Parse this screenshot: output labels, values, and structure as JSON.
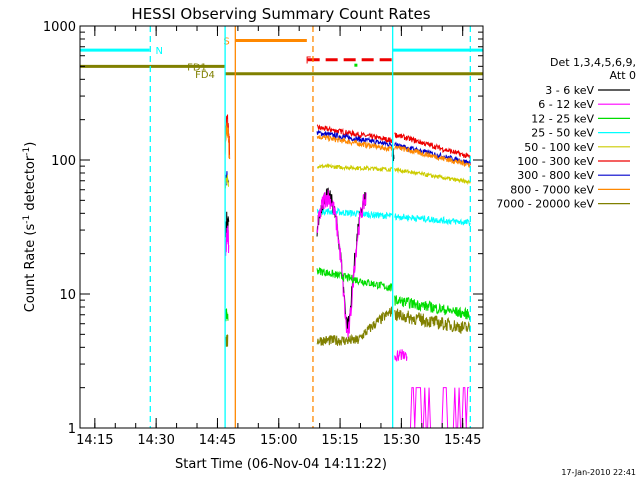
{
  "chart_data": {
    "type": "line",
    "title": "HESSI Observing Summary Count Rates",
    "xlabel": "Start Time (06-Nov-04 14:11:22)",
    "ylabel_main": "Count Rate (s",
    "ylabel_sup1": "-1",
    "ylabel_mid": " detector",
    "ylabel_sup2": "-1",
    "ylabel_end": ")",
    "ylabel": "Count Rate (s-1 detector-1)",
    "yscale": "log",
    "ylim": [
      1,
      1000
    ],
    "xlim_minutes": [
      0,
      98.6
    ],
    "x_ticks": [
      {
        "label": "14:15",
        "m": 3.63
      },
      {
        "label": "14:30",
        "m": 18.63
      },
      {
        "label": "14:45",
        "m": 33.63
      },
      {
        "label": "15:00",
        "m": 48.63
      },
      {
        "label": "15:15",
        "m": 63.63
      },
      {
        "label": "15:30",
        "m": 78.63
      },
      {
        "label": "15:45",
        "m": 93.63
      }
    ],
    "y_ticks": [
      {
        "label": "1",
        "v": 1
      },
      {
        "label": "10",
        "v": 10
      },
      {
        "label": "100",
        "v": 100
      },
      {
        "label": "1000",
        "v": 1000
      }
    ],
    "legend_title": [
      "Det 1,3,4,5,6,9,",
      "Att 0"
    ],
    "legend_position": "right",
    "series": [
      {
        "name": "3 - 6 keV",
        "color": "#000000"
      },
      {
        "name": "6 - 12 keV",
        "color": "#ff00ff"
      },
      {
        "name": "12 - 25 keV",
        "color": "#00dd00"
      },
      {
        "name": "25 - 50 keV",
        "color": "#00ffff"
      },
      {
        "name": "50 - 100 keV",
        "color": "#cccc00"
      },
      {
        "name": "100 - 300 keV",
        "color": "#ee0000"
      },
      {
        "name": "300 - 800 keV",
        "color": "#0000cc"
      },
      {
        "name": "800 - 7000 keV",
        "color": "#ff8800"
      },
      {
        "name": "7000 - 20000 keV",
        "color": "#808000"
      }
    ],
    "flags": [
      {
        "label": "N",
        "color": "#00ffff",
        "segments": [
          [
            0,
            17
          ],
          [
            76.5,
            98.6
          ]
        ],
        "value": 660,
        "dash": false
      },
      {
        "label": "S",
        "color": "#ff8800",
        "segments": [
          [
            38,
            55.5
          ]
        ],
        "value": 780,
        "dash": false
      },
      {
        "label": "F",
        "color": "#ee0000",
        "segments": [
          [
            55.7,
            76.5
          ]
        ],
        "value": 560,
        "dash": true
      },
      {
        "label": "FD1",
        "color": "#808000",
        "segments": [
          [
            0,
            35.5
          ]
        ],
        "value": 500,
        "dash": false
      },
      {
        "label": "FD4",
        "color": "#808000",
        "segments": [
          [
            35.5,
            98.6
          ]
        ],
        "value": 440,
        "dash": false
      }
    ],
    "vertical_lines": [
      {
        "m": 17.2,
        "color": "#00ffff",
        "dash": true
      },
      {
        "m": 35.5,
        "color": "#00ffff",
        "dash": false
      },
      {
        "m": 38.0,
        "color": "#ff8800",
        "dash": false
      },
      {
        "m": 57.0,
        "color": "#ff8800",
        "dash": true
      },
      {
        "m": 76.5,
        "color": "#00ffff",
        "dash": false
      },
      {
        "m": 95.5,
        "color": "#00ffff",
        "dash": true
      }
    ],
    "annotation_green_dot": {
      "m": 67.5,
      "value": 510
    },
    "timestamp": "17-Jan-2010 22:41"
  }
}
